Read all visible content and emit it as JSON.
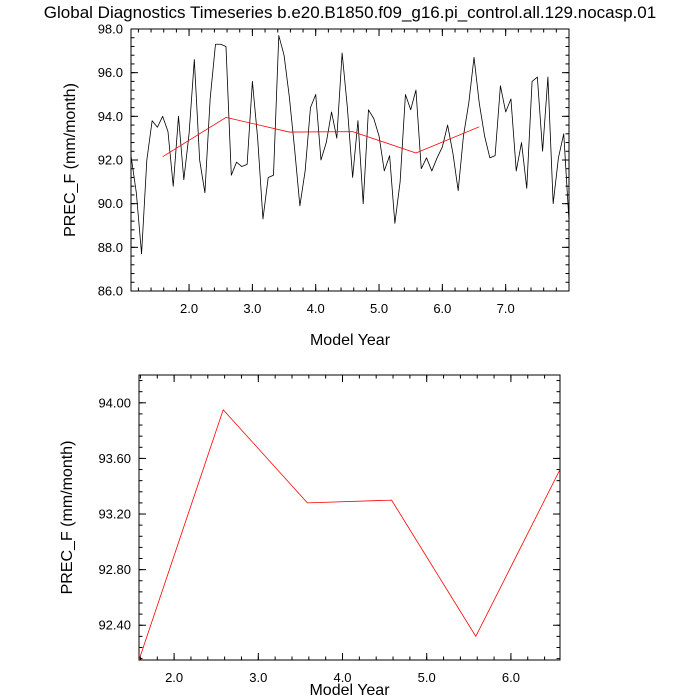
{
  "figure": {
    "title": "Global Diagnostics Timeseries b.e20.B1850.f09_g16.pi_control.all.129.nocasp.01"
  },
  "colors": {
    "monthly_line": "#000000",
    "annual_line": "#ff0000",
    "frame": "#000000"
  },
  "chart_data": [
    {
      "type": "line",
      "xlabel": "Model Year",
      "ylabel": "PREC_F (mm/month)",
      "xlim": [
        1.083,
        8.0
      ],
      "ylim": [
        86.0,
        98.0
      ],
      "x_ticks": [
        2.0,
        3.0,
        4.0,
        5.0,
        6.0,
        7.0
      ],
      "x_tick_labels": [
        "2.0",
        "3.0",
        "4.0",
        "5.0",
        "6.0",
        "7.0"
      ],
      "y_ticks": [
        86.0,
        88.0,
        90.0,
        92.0,
        94.0,
        96.0,
        98.0
      ],
      "y_tick_labels": [
        "86.0",
        "88.0",
        "90.0",
        "92.0",
        "94.0",
        "96.0",
        "98.0"
      ],
      "grid": false,
      "series": [
        {
          "x": [
            1.083,
            1.167,
            1.25,
            1.333,
            1.417,
            1.5,
            1.583,
            1.667,
            1.75,
            1.833,
            1.917,
            2.0,
            2.083,
            2.167,
            2.25,
            2.333,
            2.417,
            2.5,
            2.583,
            2.667,
            2.75,
            2.833,
            2.917,
            3.0,
            3.083,
            3.167,
            3.25,
            3.333,
            3.417,
            3.5,
            3.583,
            3.667,
            3.75,
            3.833,
            3.917,
            4.0,
            4.083,
            4.167,
            4.25,
            4.333,
            4.417,
            4.5,
            4.583,
            4.667,
            4.75,
            4.833,
            4.917,
            5.0,
            5.083,
            5.167,
            5.25,
            5.333,
            5.417,
            5.5,
            5.583,
            5.667,
            5.75,
            5.833,
            5.917,
            6.0,
            6.083,
            6.167,
            6.25,
            6.333,
            6.417,
            6.5,
            6.583,
            6.667,
            6.75,
            6.833,
            6.917,
            7.0,
            7.083,
            7.167,
            7.25,
            7.333,
            7.417,
            7.5,
            7.583,
            7.667,
            7.75,
            7.833,
            7.917,
            8.0
          ],
          "values": [
            92.2,
            90.5,
            87.7,
            92.0,
            93.8,
            93.5,
            94.0,
            93.3,
            90.8,
            94.0,
            91.1,
            93.2,
            96.6,
            92.0,
            90.5,
            94.8,
            97.3,
            97.3,
            97.2,
            91.3,
            91.9,
            91.7,
            91.8,
            95.6,
            93.0,
            89.3,
            91.2,
            91.3,
            97.7,
            96.8,
            94.9,
            92.5,
            89.9,
            91.5,
            94.4,
            95.0,
            92.0,
            92.8,
            94.2,
            93.0,
            96.9,
            94.4,
            91.2,
            93.8,
            90.0,
            94.3,
            93.9,
            93.1,
            91.5,
            92.2,
            89.1,
            91.0,
            95.0,
            94.3,
            95.2,
            91.6,
            92.1,
            91.5,
            92.1,
            92.6,
            93.6,
            92.3,
            90.6,
            93.1,
            94.6,
            96.7,
            94.6,
            93.1,
            92.1,
            92.2,
            95.4,
            94.2,
            94.8,
            91.5,
            92.8,
            90.7,
            95.6,
            95.8,
            92.4,
            95.8,
            90.0,
            92.1,
            93.2,
            89.2
          ],
          "color": "#000000"
        },
        {
          "x": [
            1.583,
            2.583,
            3.583,
            4.583,
            5.583,
            6.583
          ],
          "values": [
            92.15,
            93.95,
            93.28,
            93.3,
            92.32,
            93.52
          ],
          "color": "#ff0000"
        }
      ]
    },
    {
      "type": "line",
      "xlabel": "Model Year",
      "ylabel": "PREC_F (mm/month)",
      "xlim": [
        1.583,
        6.583
      ],
      "ylim": [
        92.15,
        94.2
      ],
      "x_ticks": [
        2.0,
        3.0,
        4.0,
        5.0,
        6.0
      ],
      "x_tick_labels": [
        "2.0",
        "3.0",
        "4.0",
        "5.0",
        "6.0"
      ],
      "y_ticks": [
        92.4,
        92.8,
        93.2,
        93.6,
        94.0
      ],
      "y_tick_labels": [
        "92.40",
        "92.80",
        "93.20",
        "93.60",
        "94.00"
      ],
      "grid": false,
      "series": [
        {
          "x": [
            1.583,
            2.583,
            3.583,
            4.583,
            5.583,
            6.583
          ],
          "values": [
            92.15,
            93.95,
            93.28,
            93.3,
            92.32,
            93.52
          ],
          "color": "#ff0000"
        }
      ]
    }
  ]
}
